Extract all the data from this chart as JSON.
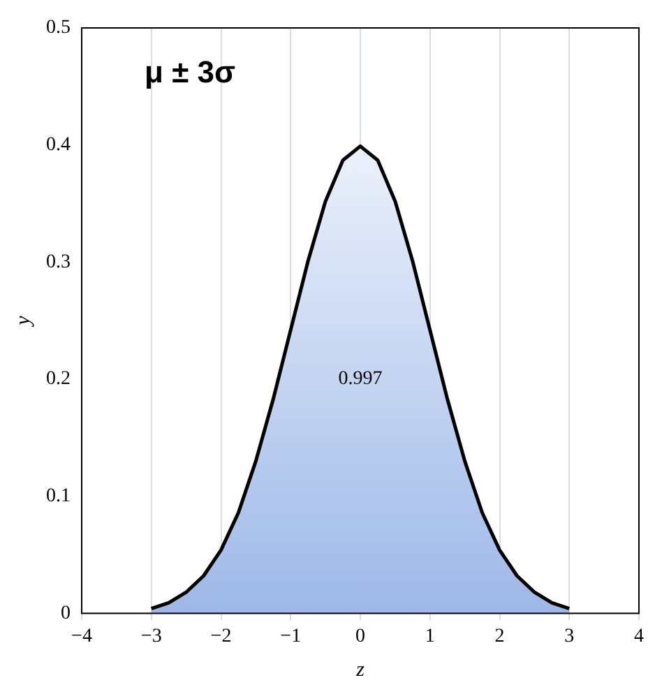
{
  "chart_data": {
    "type": "area",
    "xlabel": "z",
    "ylabel": "y",
    "x": [
      -3,
      -2.75,
      -2.5,
      -2.25,
      -2,
      -1.75,
      -1.5,
      -1.25,
      -1,
      -0.75,
      -0.5,
      -0.25,
      0,
      0.25,
      0.5,
      0.75,
      1,
      1.25,
      1.5,
      1.75,
      2,
      2.25,
      2.5,
      2.75,
      3
    ],
    "series": [
      {
        "color": "#9db8e8",
        "values": [
          0.004,
          0.009,
          0.018,
          0.032,
          0.054,
          0.086,
          0.13,
          0.183,
          0.242,
          0.301,
          0.352,
          0.387,
          0.399,
          0.387,
          0.352,
          0.301,
          0.242,
          0.183,
          0.13,
          0.086,
          0.054,
          0.032,
          0.018,
          0.009,
          0.004
        ]
      }
    ],
    "xlim": [
      -4,
      4
    ],
    "xticks": [
      -4,
      -3,
      -2,
      -1,
      0,
      1,
      2,
      3,
      4
    ],
    "ylim": [
      0,
      0.5
    ],
    "yticks": [
      0,
      0.1,
      0.2,
      0.3,
      0.4,
      0.5
    ],
    "grid": "x",
    "legend": false,
    "marker": "none",
    "annotations": [
      "μ ± 3σ",
      "0.997"
    ]
  }
}
